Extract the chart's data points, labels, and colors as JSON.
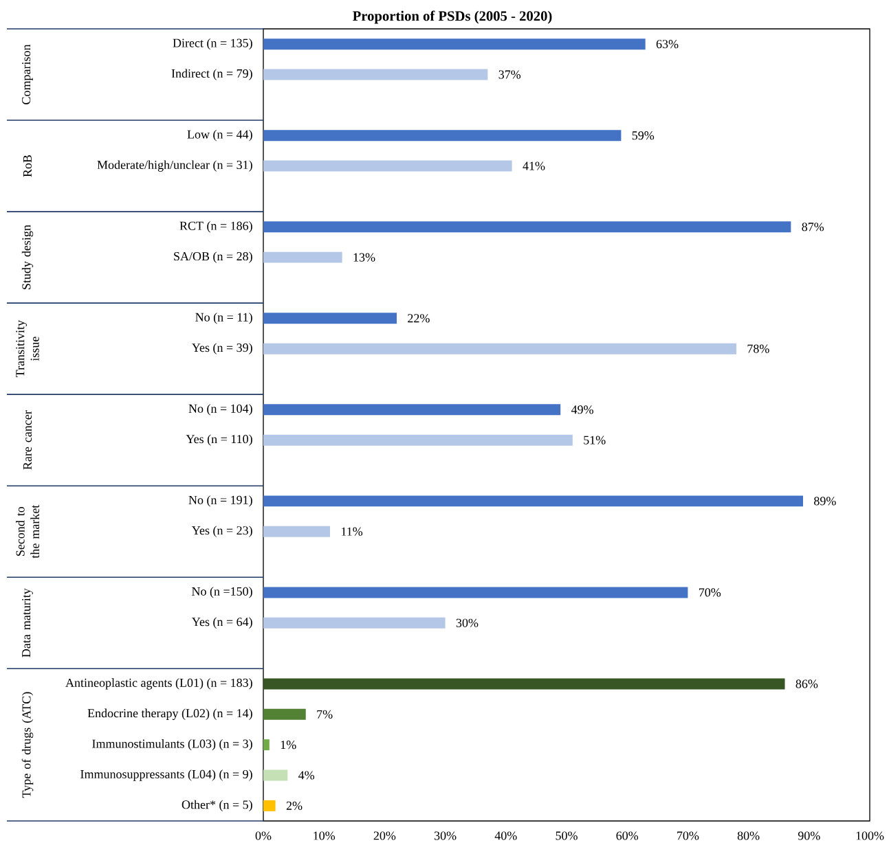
{
  "chart_data": {
    "type": "bar",
    "orientation": "horizontal",
    "title": "Proportion of PSDs (2005 - 2020)",
    "categories": [
      "Direct (n = 135)",
      "Indirect (n = 79)",
      null,
      "Low (n = 44)",
      "Moderate/high/unclear (n = 31)",
      null,
      "RCT (n = 186)",
      "SA/OB (n = 28)",
      null,
      "No (n = 11)",
      "Yes (n = 39)",
      null,
      "No (n = 104)",
      "Yes (n = 110)",
      null,
      "No (n = 191)",
      "Yes (n = 23)",
      null,
      "No (n =150)",
      "Yes (n = 64)",
      null,
      "Antineoplastic agents (L01) (n = 183)",
      "Endocrine therapy (L02) (n = 14)",
      "Immunostimulants (L03) (n = 3)",
      "Immunosuppressants (L04) (n = 9)",
      "Other* (n = 5)"
    ],
    "values": [
      63,
      37,
      null,
      59,
      41,
      null,
      87,
      13,
      null,
      22,
      78,
      null,
      49,
      51,
      null,
      89,
      11,
      null,
      70,
      30,
      null,
      86,
      7,
      1,
      4,
      2
    ],
    "value_labels": [
      "63%",
      "37%",
      null,
      "59%",
      "41%",
      null,
      "87%",
      "13%",
      null,
      "22%",
      "78%",
      null,
      "49%",
      "51%",
      null,
      "89%",
      "11%",
      null,
      "70%",
      "30%",
      null,
      "86%",
      "7%",
      "1%",
      "4%",
      "2%"
    ],
    "colors": [
      "#4472c4",
      "#b4c7e7",
      null,
      "#4472c4",
      "#b4c7e7",
      null,
      "#4472c4",
      "#b4c7e7",
      null,
      "#4472c4",
      "#b4c7e7",
      null,
      "#4472c4",
      "#b4c7e7",
      null,
      "#4472c4",
      "#b4c7e7",
      null,
      "#4472c4",
      "#b4c7e7",
      null,
      "#375623",
      "#548235",
      "#70ad47",
      "#c5e0b4",
      "#ffc000"
    ],
    "xlim": [
      0,
      100
    ],
    "xticks": [
      {
        "value": 0,
        "label": "0%"
      },
      {
        "value": 10,
        "label": "10%"
      },
      {
        "value": 20,
        "label": "20%"
      },
      {
        "value": 30,
        "label": "30%"
      },
      {
        "value": 40,
        "label": "40%"
      },
      {
        "value": 50,
        "label": "50%"
      },
      {
        "value": 60,
        "label": "60%"
      },
      {
        "value": 70,
        "label": "70%"
      },
      {
        "value": 80,
        "label": "80%"
      },
      {
        "value": 90,
        "label": "90%"
      },
      {
        "value": 100,
        "label": "100%"
      }
    ],
    "annotations": [
      "Comparison",
      "RoB",
      "Study design",
      "Transitivity issue",
      "Rare cancer",
      "Second to the market",
      "Data maturity",
      "Type of drugs (ATC)"
    ]
  }
}
